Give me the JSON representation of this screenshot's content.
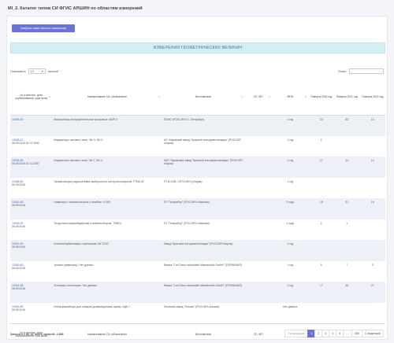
{
  "page": {
    "title": "MI_2. Каталог типов СИ ФГИС АРШИН по областям измерений"
  },
  "actions": {
    "select_area": "Выбрать иную область измерений"
  },
  "banner": {
    "text": "ИЗМЕРЕНИЯ ГЕОМЕТРИЧЕСКИХ ВЕЛИЧИН"
  },
  "controls": {
    "show": "Показывать",
    "entries_value": "10",
    "entries_suffix": "записей",
    "search_label": "Поиск:"
  },
  "table": {
    "headers": [
      "№ в реестре, дата опубликования, срок св-ва",
      "Наименование СИ, обозначение",
      "Изготовитель",
      "СП, МП",
      "МПИ",
      "Поверок 2020 год",
      "Поверок 2021 год",
      "Поверок 2022 год"
    ],
    "rows": [
      {
        "num": "10056-85",
        "date": "",
        "name": "Микрометры инструментальные рычажные, МИР-Х",
        "maker": "ЛОМО (РОССИЯ г.С.-Петербург)",
        "si": "",
        "mpi": "1 год",
        "y2020": "24",
        "y2021": "53",
        "y2022": "14"
      },
      {
        "num": "10036-81",
        "date": "06.09.2016 01.07.2062",
        "name": "Индикаторы часового типа, ЧИ-Л, ЗИ-Ч",
        "maker": "АО \"Кировский завод \"Красный инструментальщик\" (РОССИЯ г.Киров)",
        "si": "",
        "mpi": "1 год",
        "y2020": "2",
        "y2021": "",
        "y2022": ""
      },
      {
        "num": "10036-85",
        "date": "06.09.2016 01.11.2087",
        "name": "Индикаторы часового типа, ЧИ-Т, ЗИ-Ч",
        "maker": "ЗАО \"Кировский завод \"Красный инструментальщик\" (РОССИЯ г.Киров)",
        "si": "",
        "mpi": "1 год",
        "y2020": "27",
        "y2021": "23",
        "y2022": "12"
      },
      {
        "num": "10038-85",
        "date": "06.09.2016",
        "name": "Экзаменаторы радиосетевые выборочного контроля покрытий, РТВК-2К",
        "maker": "ГП В-ЛОВ, СЕТОЧНЯ (г.Нарва)",
        "si": "",
        "mpi": "1 год",
        "y2020": "",
        "y2021": "",
        "y2022": ""
      },
      {
        "num": "10043-85",
        "date": "06.09.2016",
        "name": "Нивелиры с компенсатором и лимбом, Н-3КЛ",
        "maker": "ГО \"Геоприбор\" (РОССИЯ г.Иваново)",
        "si": "",
        "mpi": "2 года",
        "y2020": "18",
        "y2021": "31",
        "y2022": "16"
      },
      {
        "num": "10045-85",
        "date": "06.09.2016",
        "name": "Теодолиты маркшейдерские с компенсатором, ТЭВО1",
        "maker": "ГО \"Геоприбор\" (РОССИЯ г.Иваново)",
        "si": "",
        "mpi": "2 года",
        "y2020": "2",
        "y2021": "1",
        "y2022": ""
      },
      {
        "num": "10047-85",
        "date": "06.09.2016",
        "name": "Штангенглубиномеры стрелочные, ШГ-0232",
        "maker": "Завод \"Красный инструментальщик\" (РОССИЯ г.Киров)",
        "si": "",
        "mpi": "1 год",
        "y2020": "",
        "y2021": "",
        "y2022": ""
      },
      {
        "num": "10050-85",
        "date": "06.09.2016",
        "name": "Уровни (нивелиры), Нет данных",
        "maker": "Фирма \"Carl Zeiss Industrielle Messtechnik GmbH\" (ГЕРМАНИЯ)",
        "si": "",
        "mpi": "1 год",
        "y2020": "5",
        "y2021": "7",
        "y2022": "3"
      },
      {
        "num": "10051-85",
        "date": "06.09.2016",
        "name": "Угломеры оптические, Нет данных",
        "maker": "Фирма \"Carl Zeiss Industrielle Messtechnik GmbH\" (ГЕРМАНИЯ)",
        "si": "",
        "mpi": "1 год",
        "y2020": "17",
        "y2021": "36",
        "y2022": "27"
      },
      {
        "num": "10052-85",
        "date": "06.09.2016",
        "name": "Интерферометры для поверки долевокруговых призм, ИДК-7",
        "maker": "Опытный завод \"Оптика\" (РОССИЯ г.Казань)",
        "si": "",
        "mpi": "Нет данных",
        "y2020": "",
        "y2021": "",
        "y2022": ""
      }
    ]
  },
  "footer": {
    "info": "Записи с 1 по 10, всего записей: 2,889",
    "prev": "Предыдущая",
    "pages": [
      "1",
      "2",
      "3",
      "4",
      "5",
      "…",
      "289"
    ],
    "next": "Следующая"
  }
}
